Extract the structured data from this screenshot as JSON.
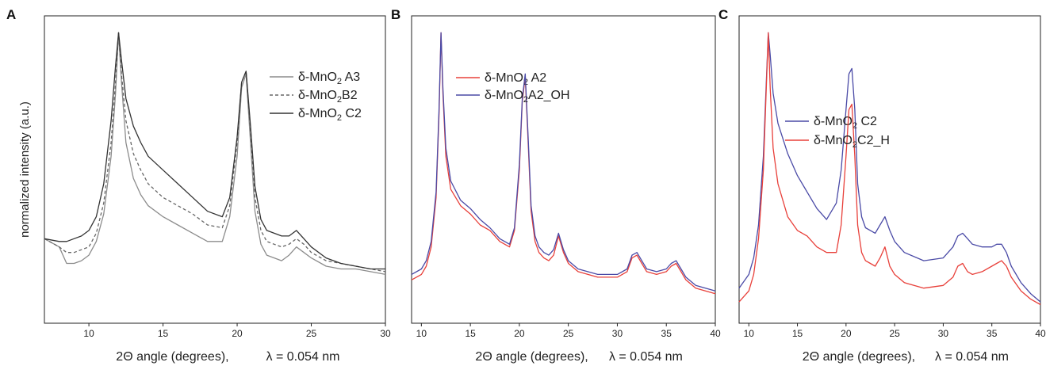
{
  "y_axis_label": "normalized intensity (a.u.)",
  "chart_data": [
    {
      "panel": "A",
      "type": "line",
      "xlabel": "2Θ angle (degrees),",
      "xlabel_lambda": "λ = 0.054 nm",
      "xlim": [
        7,
        30
      ],
      "xticks": [
        10,
        15,
        20,
        25,
        30
      ],
      "ylim": [
        0,
        1.05
      ],
      "grid": false,
      "legend_placement": "top-right",
      "series": [
        {
          "name": "δ-MnO₂ A3",
          "legend": [
            "δ-MnO",
            "2",
            " A3"
          ],
          "color": "#8c8c8c",
          "dash": "",
          "x": [
            7,
            8,
            8.5,
            9,
            9.5,
            10,
            10.5,
            11,
            11.5,
            11.8,
            12,
            12.2,
            12.5,
            13,
            13.5,
            14,
            15,
            16,
            17,
            18,
            19,
            19.5,
            20,
            20.3,
            20.6,
            20.9,
            21.2,
            21.6,
            22,
            22.5,
            23,
            23.5,
            24,
            24.5,
            25,
            26,
            27,
            28,
            29,
            30
          ],
          "y": [
            0.25,
            0.22,
            0.16,
            0.16,
            0.17,
            0.19,
            0.24,
            0.34,
            0.55,
            0.78,
            1.0,
            0.82,
            0.6,
            0.47,
            0.41,
            0.37,
            0.33,
            0.3,
            0.27,
            0.24,
            0.24,
            0.33,
            0.55,
            0.8,
            0.85,
            0.6,
            0.35,
            0.23,
            0.19,
            0.18,
            0.17,
            0.19,
            0.22,
            0.2,
            0.18,
            0.15,
            0.14,
            0.14,
            0.13,
            0.12
          ]
        },
        {
          "name": "δ-MnO₂ B2",
          "legend": [
            "δ-MnO",
            "2",
            "B2"
          ],
          "color": "#666666",
          "dash": "4,3",
          "x": [
            7,
            8,
            8.5,
            9,
            9.5,
            10,
            10.5,
            11,
            11.5,
            11.8,
            12,
            12.2,
            12.5,
            13,
            13.5,
            14,
            15,
            16,
            17,
            18,
            19,
            19.5,
            20,
            20.3,
            20.6,
            20.9,
            21.2,
            21.6,
            22,
            22.5,
            23,
            23.5,
            24,
            24.5,
            25,
            26,
            27,
            28,
            29,
            30
          ],
          "y": [
            0.25,
            0.22,
            0.2,
            0.2,
            0.21,
            0.22,
            0.27,
            0.38,
            0.6,
            0.82,
            1.0,
            0.85,
            0.68,
            0.56,
            0.5,
            0.45,
            0.4,
            0.37,
            0.34,
            0.3,
            0.29,
            0.37,
            0.6,
            0.82,
            0.86,
            0.64,
            0.4,
            0.28,
            0.24,
            0.23,
            0.22,
            0.23,
            0.25,
            0.23,
            0.2,
            0.17,
            0.16,
            0.15,
            0.14,
            0.13
          ]
        },
        {
          "name": "δ-MnO₂ C2",
          "legend": [
            "δ-MnO",
            "2",
            " C2"
          ],
          "color": "#333333",
          "dash": "",
          "x": [
            7,
            8,
            8.5,
            9,
            9.5,
            10,
            10.5,
            11,
            11.5,
            11.8,
            12,
            12.2,
            12.5,
            13,
            13.5,
            14,
            15,
            16,
            17,
            18,
            19,
            19.5,
            20,
            20.3,
            20.6,
            20.9,
            21.2,
            21.6,
            22,
            22.5,
            23,
            23.5,
            24,
            24.5,
            25,
            26,
            27,
            28,
            29,
            30
          ],
          "y": [
            0.25,
            0.24,
            0.24,
            0.25,
            0.26,
            0.28,
            0.33,
            0.45,
            0.68,
            0.88,
            1.0,
            0.9,
            0.76,
            0.66,
            0.6,
            0.55,
            0.5,
            0.45,
            0.4,
            0.35,
            0.33,
            0.4,
            0.62,
            0.82,
            0.86,
            0.66,
            0.44,
            0.32,
            0.28,
            0.27,
            0.26,
            0.26,
            0.28,
            0.25,
            0.22,
            0.18,
            0.16,
            0.15,
            0.14,
            0.14
          ]
        }
      ]
    },
    {
      "panel": "B",
      "type": "line",
      "xlabel": "2Θ angle (degrees),",
      "xlabel_lambda": "λ = 0.054 nm",
      "xlim": [
        9,
        40
      ],
      "xticks": [
        10,
        15,
        20,
        25,
        30,
        35,
        40
      ],
      "ylim": [
        0,
        1.05
      ],
      "grid": false,
      "legend_placement": "top-right",
      "series": [
        {
          "name": "δ-MnO₂ A2",
          "legend": [
            "δ-MnO",
            "2",
            " A2"
          ],
          "color": "#e8403a",
          "dash": "",
          "x": [
            9,
            10,
            10.5,
            11,
            11.5,
            11.8,
            12,
            12.2,
            12.5,
            13,
            14,
            15,
            16,
            17,
            18,
            19,
            19.5,
            20,
            20.3,
            20.6,
            20.9,
            21.2,
            21.6,
            22,
            22.5,
            23,
            23.5,
            24,
            24.5,
            25,
            26,
            28,
            30,
            31,
            31.5,
            32,
            32.5,
            33,
            34,
            35,
            35.5,
            36,
            36.5,
            37,
            38,
            39,
            40
          ],
          "y": [
            0.1,
            0.12,
            0.15,
            0.22,
            0.4,
            0.7,
            1.0,
            0.78,
            0.55,
            0.43,
            0.37,
            0.34,
            0.3,
            0.28,
            0.24,
            0.22,
            0.28,
            0.5,
            0.75,
            0.84,
            0.6,
            0.35,
            0.24,
            0.2,
            0.18,
            0.17,
            0.19,
            0.26,
            0.2,
            0.16,
            0.13,
            0.11,
            0.11,
            0.13,
            0.18,
            0.19,
            0.16,
            0.13,
            0.12,
            0.13,
            0.15,
            0.16,
            0.13,
            0.1,
            0.07,
            0.06,
            0.05
          ]
        },
        {
          "name": "δ-MnO₂A2_OH",
          "legend": [
            "δ-MnO",
            "2",
            "A2_OH"
          ],
          "color": "#4a4aa6",
          "dash": "",
          "x": [
            9,
            10,
            10.5,
            11,
            11.5,
            11.8,
            12,
            12.2,
            12.5,
            13,
            14,
            15,
            16,
            17,
            18,
            19,
            19.5,
            20,
            20.3,
            20.6,
            20.9,
            21.2,
            21.6,
            22,
            22.5,
            23,
            23.5,
            24,
            24.5,
            25,
            26,
            28,
            30,
            31,
            31.5,
            32,
            32.5,
            33,
            34,
            35,
            35.5,
            36,
            36.5,
            37,
            38,
            39,
            40
          ],
          "y": [
            0.12,
            0.14,
            0.17,
            0.24,
            0.42,
            0.72,
            1.0,
            0.8,
            0.58,
            0.46,
            0.39,
            0.36,
            0.32,
            0.29,
            0.25,
            0.23,
            0.29,
            0.52,
            0.76,
            0.85,
            0.62,
            0.37,
            0.26,
            0.22,
            0.2,
            0.19,
            0.21,
            0.27,
            0.21,
            0.17,
            0.14,
            0.12,
            0.12,
            0.14,
            0.19,
            0.2,
            0.17,
            0.14,
            0.13,
            0.14,
            0.16,
            0.17,
            0.14,
            0.11,
            0.08,
            0.07,
            0.06
          ]
        }
      ]
    },
    {
      "panel": "C",
      "type": "line",
      "xlabel": "2Θ angle (degrees),",
      "xlabel_lambda": "λ = 0.054 nm",
      "xlim": [
        9,
        40
      ],
      "xticks": [
        10,
        15,
        20,
        25,
        30,
        35,
        40
      ],
      "ylim": [
        0,
        1.05
      ],
      "grid": false,
      "legend_placement": "top-right",
      "series": [
        {
          "name": "δ-MnO₂ C2",
          "legend": [
            "δ-MnO",
            "2",
            " C2"
          ],
          "color": "#4a4aa6",
          "dash": "",
          "x": [
            9,
            10,
            10.5,
            11,
            11.5,
            11.8,
            12,
            12.2,
            12.5,
            13,
            14,
            15,
            16,
            17,
            18,
            19,
            19.5,
            20,
            20.3,
            20.6,
            20.9,
            21.2,
            21.6,
            22,
            22.5,
            23,
            23.5,
            24,
            24.5,
            25,
            26,
            28,
            30,
            31,
            31.5,
            32,
            32.5,
            33,
            34,
            35,
            35.5,
            36,
            36.5,
            37,
            38,
            39,
            40
          ],
          "y": [
            0.07,
            0.12,
            0.18,
            0.3,
            0.55,
            0.82,
            1.0,
            0.92,
            0.78,
            0.67,
            0.56,
            0.48,
            0.42,
            0.36,
            0.32,
            0.38,
            0.5,
            0.72,
            0.85,
            0.87,
            0.72,
            0.45,
            0.33,
            0.29,
            0.28,
            0.27,
            0.3,
            0.33,
            0.28,
            0.24,
            0.2,
            0.17,
            0.18,
            0.22,
            0.26,
            0.27,
            0.25,
            0.23,
            0.22,
            0.22,
            0.23,
            0.23,
            0.2,
            0.15,
            0.09,
            0.05,
            0.02
          ]
        },
        {
          "name": "δ-MnO₂C2_H",
          "legend": [
            "δ-MnO",
            "2",
            "C2_H"
          ],
          "color": "#e8403a",
          "dash": "",
          "x": [
            9,
            10,
            10.5,
            11,
            11.5,
            11.8,
            12,
            12.2,
            12.5,
            13,
            14,
            15,
            16,
            17,
            18,
            19,
            19.5,
            20,
            20.3,
            20.6,
            20.9,
            21.2,
            21.6,
            22,
            22.5,
            23,
            23.5,
            24,
            24.5,
            25,
            26,
            28,
            30,
            31,
            31.5,
            32,
            32.5,
            33,
            34,
            35,
            35.5,
            36,
            36.5,
            37,
            38,
            39,
            40
          ],
          "y": [
            0.02,
            0.06,
            0.12,
            0.25,
            0.5,
            0.8,
            1.0,
            0.8,
            0.58,
            0.45,
            0.33,
            0.28,
            0.26,
            0.22,
            0.2,
            0.2,
            0.3,
            0.55,
            0.72,
            0.74,
            0.55,
            0.3,
            0.2,
            0.17,
            0.16,
            0.15,
            0.18,
            0.22,
            0.15,
            0.12,
            0.09,
            0.07,
            0.08,
            0.11,
            0.15,
            0.16,
            0.13,
            0.12,
            0.13,
            0.15,
            0.16,
            0.17,
            0.15,
            0.11,
            0.06,
            0.03,
            0.01
          ]
        }
      ]
    }
  ]
}
